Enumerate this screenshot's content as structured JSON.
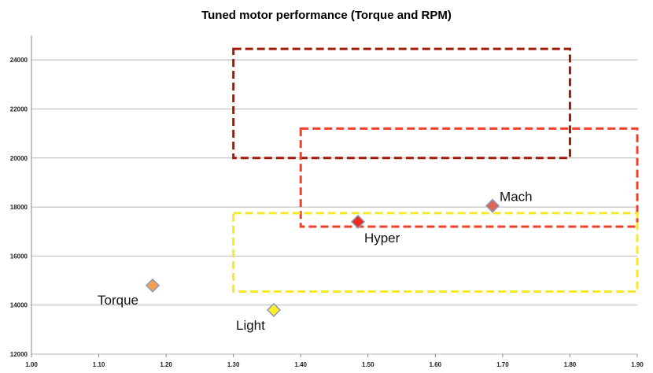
{
  "chart_data": {
    "type": "scatter",
    "title": "Tuned motor performance (Torque and RPM)",
    "xlabel": "",
    "ylabel": "",
    "xlim": [
      1.0,
      1.9
    ],
    "ylim": [
      12000,
      25000
    ],
    "x_ticks": [
      "1.00",
      "1.10",
      "1.20",
      "1.30",
      "1.40",
      "1.50",
      "1.60",
      "1.70",
      "1.80",
      "1.90"
    ],
    "y_ticks": [
      "12000",
      "14000",
      "16000",
      "18000",
      "20000",
      "22000",
      "24000"
    ],
    "grid": "horizontal",
    "points": [
      {
        "label": "Torque",
        "x": 1.18,
        "y": 14800,
        "color": "#f4a050"
      },
      {
        "label": "Light",
        "x": 1.36,
        "y": 13800,
        "color": "#ffee22"
      },
      {
        "label": "Hyper",
        "x": 1.485,
        "y": 17400,
        "color": "#ee2a1a"
      },
      {
        "label": "Mach",
        "x": 1.685,
        "y": 18050,
        "color": "#dd6655"
      }
    ],
    "regions": [
      {
        "x0": 1.3,
        "x1": 1.8,
        "y0": 20000,
        "y1": 24450,
        "color": "#a01a08"
      },
      {
        "x0": 1.4,
        "x1": 1.9,
        "y0": 17200,
        "y1": 21200,
        "color": "#f0402a"
      },
      {
        "x0": 1.3,
        "x1": 1.9,
        "y0": 14550,
        "y1": 17750,
        "color": "#f5e92a"
      }
    ]
  }
}
